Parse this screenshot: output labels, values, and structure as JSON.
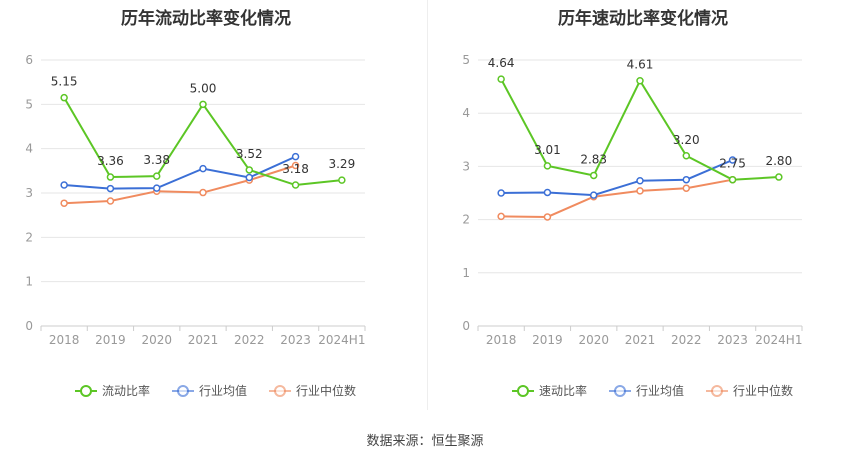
{
  "source_text": "数据来源：恒生聚源",
  "colors": {
    "primary": "#5cc625",
    "average": "#3b6fd6",
    "median": "#f08b5f",
    "grid": "#e6e6e6",
    "axis_text": "#999999"
  },
  "chart_data": [
    {
      "type": "line",
      "title": "历年流动比率变化情况",
      "categories": [
        "2018",
        "2019",
        "2020",
        "2021",
        "2022",
        "2023",
        "2024H1"
      ],
      "ylim": [
        0,
        6
      ],
      "yticks": [
        0,
        1,
        2,
        3,
        4,
        5,
        6
      ],
      "legend_position": "bottom",
      "series": [
        {
          "name": "流动比率",
          "key": "primary",
          "values": [
            5.15,
            3.36,
            3.38,
            5.0,
            3.52,
            3.18,
            3.29
          ],
          "labels": [
            "5.15",
            "3.36",
            "3.38",
            "5.00",
            "3.52",
            "3.18",
            "3.29"
          ]
        },
        {
          "name": "行业均值",
          "key": "average",
          "values": [
            3.18,
            3.1,
            3.11,
            3.55,
            3.35,
            3.82,
            null
          ]
        },
        {
          "name": "行业中位数",
          "key": "median",
          "values": [
            2.77,
            2.82,
            3.04,
            3.01,
            3.29,
            3.62,
            null
          ]
        }
      ]
    },
    {
      "type": "line",
      "title": "历年速动比率变化情况",
      "categories": [
        "2018",
        "2019",
        "2020",
        "2021",
        "2022",
        "2023",
        "2024H1"
      ],
      "ylim": [
        0,
        5
      ],
      "yticks": [
        0,
        1,
        2,
        3,
        4,
        5
      ],
      "legend_position": "bottom",
      "series": [
        {
          "name": "速动比率",
          "key": "primary",
          "values": [
            4.64,
            3.01,
            2.83,
            4.61,
            3.2,
            2.75,
            2.8
          ],
          "labels": [
            "4.64",
            "3.01",
            "2.83",
            "4.61",
            "3.20",
            "2.75",
            "2.80"
          ]
        },
        {
          "name": "行业均值",
          "key": "average",
          "values": [
            2.5,
            2.51,
            2.46,
            2.73,
            2.75,
            3.12,
            null
          ]
        },
        {
          "name": "行业中位数",
          "key": "median",
          "values": [
            2.06,
            2.05,
            2.43,
            2.54,
            2.59,
            2.75,
            null
          ]
        }
      ]
    }
  ]
}
